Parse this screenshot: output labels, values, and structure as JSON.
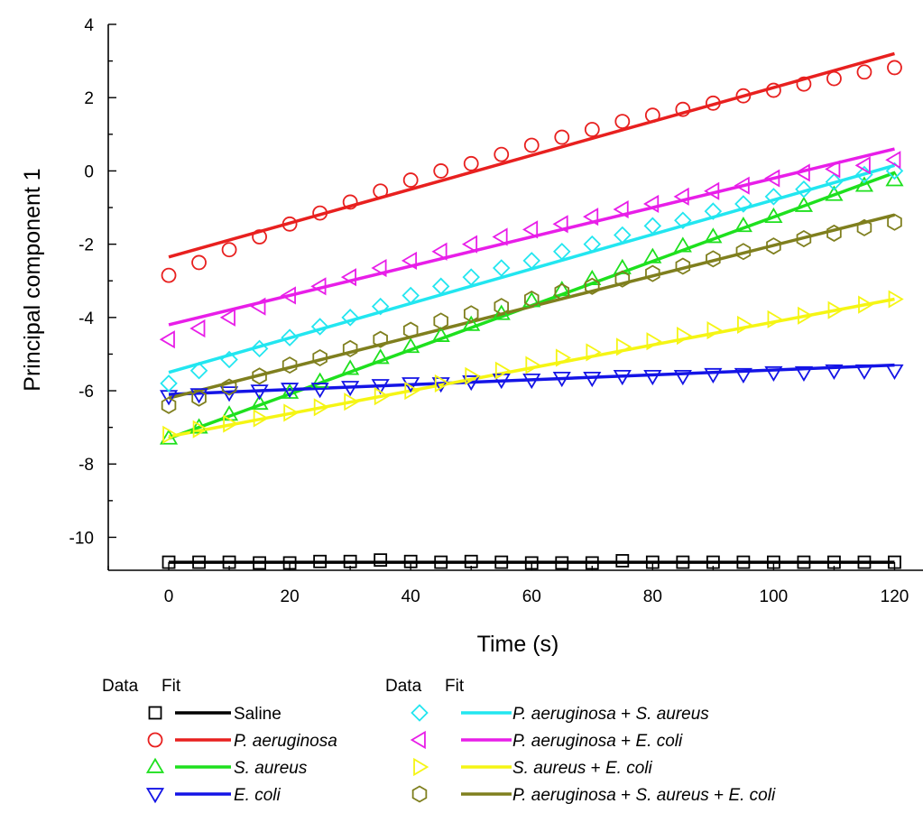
{
  "chart_data": {
    "type": "scatter",
    "title": "",
    "xlabel": "Time (s)",
    "ylabel": "Principal component 1",
    "xlim": [
      -10,
      125
    ],
    "ylim": [
      -10.9,
      4
    ],
    "x_ticks": [
      0,
      20,
      40,
      60,
      80,
      100,
      120
    ],
    "y_ticks": [
      4,
      2,
      0,
      -2,
      -4,
      -6,
      -8,
      -10
    ],
    "grid": false,
    "legend_position": "bottom",
    "legend_header_data": "Data",
    "legend_header_fit": "Fit",
    "x": [
      0,
      5,
      10,
      15,
      20,
      25,
      30,
      35,
      40,
      45,
      50,
      55,
      60,
      65,
      70,
      75,
      80,
      85,
      90,
      95,
      100,
      105,
      110,
      115,
      120
    ],
    "series": [
      {
        "name": "Saline",
        "legend_parts": [
          {
            "text": "Saline",
            "italic": false
          }
        ],
        "color": "#000000",
        "marker": "square",
        "values": [
          -10.68,
          -10.68,
          -10.68,
          -10.7,
          -10.7,
          -10.66,
          -10.66,
          -10.62,
          -10.66,
          -10.68,
          -10.66,
          -10.68,
          -10.7,
          -10.7,
          -10.7,
          -10.64,
          -10.68,
          -10.68,
          -10.68,
          -10.68,
          -10.68,
          -10.68,
          -10.68,
          -10.68,
          -10.68
        ],
        "fit": [
          -10.68,
          -10.68
        ]
      },
      {
        "name": "P. aeruginosa",
        "legend_parts": [
          {
            "text": "P. aeruginosa",
            "italic": true
          }
        ],
        "color": "#e8201f",
        "marker": "circle",
        "values": [
          -2.85,
          -2.5,
          -2.15,
          -1.8,
          -1.45,
          -1.15,
          -0.85,
          -0.55,
          -0.25,
          0.0,
          0.2,
          0.45,
          0.7,
          0.92,
          1.13,
          1.35,
          1.52,
          1.68,
          1.85,
          2.05,
          2.2,
          2.37,
          2.52,
          2.7,
          2.82
        ],
        "fit": [
          -2.35,
          3.2
        ]
      },
      {
        "name": "S. aureus",
        "legend_parts": [
          {
            "text": "S. aureus",
            "italic": true
          }
        ],
        "color": "#1ee01e",
        "marker": "triangle-up",
        "values": [
          -7.3,
          -7.0,
          -6.65,
          -6.35,
          -6.05,
          -5.75,
          -5.4,
          -5.1,
          -4.8,
          -4.5,
          -4.2,
          -3.9,
          -3.55,
          -3.25,
          -2.95,
          -2.65,
          -2.35,
          -2.05,
          -1.8,
          -1.5,
          -1.25,
          -0.95,
          -0.65,
          -0.4,
          -0.25
        ],
        "fit": [
          -7.3,
          -0.05
        ]
      },
      {
        "name": "E. coli",
        "legend_parts": [
          {
            "text": "E. coli",
            "italic": true
          }
        ],
        "color": "#1414e6",
        "marker": "triangle-down",
        "values": [
          -6.15,
          -6.1,
          -6.05,
          -6.0,
          -5.95,
          -5.95,
          -5.9,
          -5.85,
          -5.8,
          -5.8,
          -5.75,
          -5.7,
          -5.7,
          -5.65,
          -5.65,
          -5.6,
          -5.6,
          -5.6,
          -5.55,
          -5.55,
          -5.5,
          -5.5,
          -5.45,
          -5.45,
          -5.45
        ],
        "fit": [
          -6.1,
          -5.3
        ]
      },
      {
        "name": "P. aeruginosa + S. aureus",
        "legend_parts": [
          {
            "text": "P. aeruginosa",
            "italic": true
          },
          {
            "text": " + ",
            "italic": false
          },
          {
            "text": "S. aureus",
            "italic": true
          }
        ],
        "color": "#22e6f0",
        "marker": "diamond",
        "values": [
          -5.8,
          -5.45,
          -5.15,
          -4.85,
          -4.55,
          -4.25,
          -4.0,
          -3.7,
          -3.4,
          -3.15,
          -2.9,
          -2.65,
          -2.45,
          -2.2,
          -2.0,
          -1.75,
          -1.5,
          -1.35,
          -1.1,
          -0.9,
          -0.7,
          -0.5,
          -0.3,
          -0.1,
          0.0
        ],
        "fit": [
          -5.5,
          0.15
        ]
      },
      {
        "name": "P. aeruginosa + E. coli",
        "legend_parts": [
          {
            "text": "P. aeruginosa",
            "italic": true
          },
          {
            "text": " + ",
            "italic": false
          },
          {
            "text": "E. coli",
            "italic": true
          }
        ],
        "color": "#e81ee8",
        "marker": "triangle-left",
        "values": [
          -4.6,
          -4.3,
          -4.0,
          -3.7,
          -3.4,
          -3.15,
          -2.9,
          -2.65,
          -2.45,
          -2.2,
          -2.0,
          -1.8,
          -1.6,
          -1.45,
          -1.25,
          -1.05,
          -0.9,
          -0.7,
          -0.55,
          -0.4,
          -0.2,
          -0.05,
          0.05,
          0.15,
          0.3
        ],
        "fit": [
          -4.2,
          0.6
        ]
      },
      {
        "name": "S. aureus + E. coli",
        "legend_parts": [
          {
            "text": "S. aureus",
            "italic": true
          },
          {
            "text": " + ",
            "italic": false
          },
          {
            "text": "E. coli",
            "italic": true
          }
        ],
        "color": "#f5f514",
        "marker": "triangle-right",
        "values": [
          -7.2,
          -7.05,
          -6.9,
          -6.75,
          -6.6,
          -6.45,
          -6.3,
          -6.15,
          -6.0,
          -5.8,
          -5.6,
          -5.45,
          -5.3,
          -5.1,
          -4.95,
          -4.8,
          -4.65,
          -4.5,
          -4.35,
          -4.2,
          -4.05,
          -3.95,
          -3.8,
          -3.65,
          -3.5
        ],
        "fit": [
          -7.25,
          -3.5
        ]
      },
      {
        "name": "P. aeruginosa + S. aureus + E. coli",
        "legend_parts": [
          {
            "text": "P. aeruginosa",
            "italic": true
          },
          {
            "text": " + ",
            "italic": false
          },
          {
            "text": "S. aureus",
            "italic": true
          },
          {
            "text": " + ",
            "italic": false
          },
          {
            "text": "E. coli",
            "italic": true
          }
        ],
        "color": "#7f7f1e",
        "marker": "hexagon",
        "values": [
          -6.4,
          -6.2,
          -5.9,
          -5.6,
          -5.3,
          -5.1,
          -4.85,
          -4.6,
          -4.35,
          -4.1,
          -3.9,
          -3.7,
          -3.5,
          -3.3,
          -3.15,
          -2.95,
          -2.8,
          -2.6,
          -2.4,
          -2.2,
          -2.05,
          -1.85,
          -1.7,
          -1.55,
          -1.4
        ],
        "fit": [
          -6.2,
          -1.2
        ]
      }
    ]
  }
}
